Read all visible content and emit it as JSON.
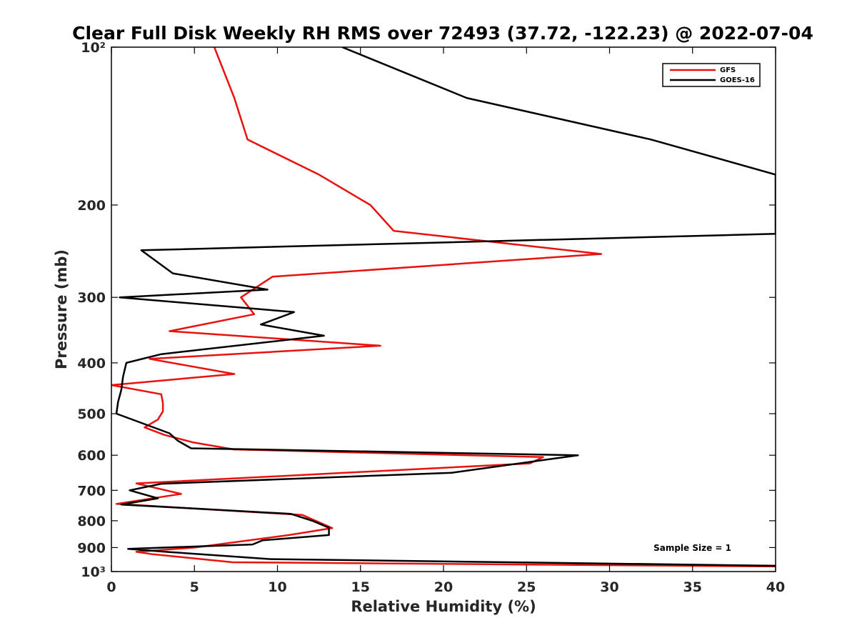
{
  "chart_data": {
    "type": "line",
    "title": "Clear Full Disk Weekly RH RMS over 72493 (37.72, -122.23) @ 2022-07-04",
    "xlabel": "Relative Humidity (%)",
    "ylabel": "Pressure (mb)",
    "xlim": [
      0,
      40
    ],
    "ylim": [
      100,
      1000
    ],
    "y_scale": "log",
    "y_reversed": true,
    "x_ticks": [
      0,
      5,
      10,
      15,
      20,
      25,
      30,
      35,
      40
    ],
    "x_tick_labels": [
      "0",
      "5",
      "10",
      "15",
      "20",
      "25",
      "30",
      "35",
      "40"
    ],
    "y_ticks": [
      100,
      200,
      300,
      400,
      500,
      600,
      700,
      800,
      900,
      1000
    ],
    "y_tick_labels": [
      "10²",
      "200",
      "300",
      "400",
      "500",
      "600",
      "700",
      "800",
      "900",
      "10³"
    ],
    "grid": false,
    "legend_position": "top-right",
    "annotation": "Sample Size = 1",
    "series": [
      {
        "name": "GFS",
        "color": "#e8120f",
        "points": [
          [
            6.2,
            100
          ],
          [
            7.4,
            125
          ],
          [
            8.2,
            150
          ],
          [
            12.5,
            175
          ],
          [
            15.6,
            200
          ],
          [
            17.0,
            224
          ],
          [
            29.5,
            248
          ],
          [
            9.7,
            274
          ],
          [
            7.8,
            300
          ],
          [
            8.6,
            323
          ],
          [
            3.5,
            348
          ],
          [
            16.2,
            371
          ],
          [
            2.3,
            393
          ],
          [
            7.4,
            420
          ],
          [
            0.0,
            441
          ],
          [
            3.0,
            459
          ],
          [
            3.1,
            477
          ],
          [
            3.1,
            495
          ],
          [
            2.8,
            513
          ],
          [
            2.0,
            531
          ],
          [
            3.2,
            549
          ],
          [
            4.9,
            567
          ],
          [
            7.4,
            585
          ],
          [
            26.0,
            605
          ],
          [
            25.2,
            622
          ],
          [
            1.5,
            679
          ],
          [
            4.2,
            711
          ],
          [
            0.3,
            743
          ],
          [
            11.5,
            780
          ],
          [
            13.3,
            826
          ],
          [
            10.7,
            852
          ],
          [
            5.0,
            900
          ],
          [
            1.5,
            917
          ],
          [
            2.5,
            927
          ],
          [
            7.3,
            960
          ],
          [
            40.0,
            978
          ]
        ]
      },
      {
        "name": "GOES-16",
        "color": "#000000",
        "points": [
          [
            13.9,
            100
          ],
          [
            21.4,
            125
          ],
          [
            32.5,
            150
          ],
          [
            40.0,
            175
          ],
          [
            40.0,
            200
          ],
          [
            40.0,
            227
          ],
          [
            1.8,
            244
          ],
          [
            3.7,
            270
          ],
          [
            9.4,
            290
          ],
          [
            0.5,
            300
          ],
          [
            11.0,
            320
          ],
          [
            9.0,
            338
          ],
          [
            12.8,
            355
          ],
          [
            3.0,
            385
          ],
          [
            0.9,
            400
          ],
          [
            0.7,
            425
          ],
          [
            0.6,
            450
          ],
          [
            0.4,
            475
          ],
          [
            0.3,
            500
          ],
          [
            3.5,
            545
          ],
          [
            4.0,
            563
          ],
          [
            4.8,
            582
          ],
          [
            28.1,
            600
          ],
          [
            20.5,
            648
          ],
          [
            3.0,
            680
          ],
          [
            1.1,
            700
          ],
          [
            2.8,
            725
          ],
          [
            0.6,
            745
          ],
          [
            10.8,
            776
          ],
          [
            12.1,
            800
          ],
          [
            13.1,
            825
          ],
          [
            13.1,
            852
          ],
          [
            9.1,
            872
          ],
          [
            8.5,
            888
          ],
          [
            1.0,
            905
          ],
          [
            3.5,
            918
          ],
          [
            9.6,
            947
          ],
          [
            40.0,
            975
          ]
        ]
      }
    ]
  }
}
